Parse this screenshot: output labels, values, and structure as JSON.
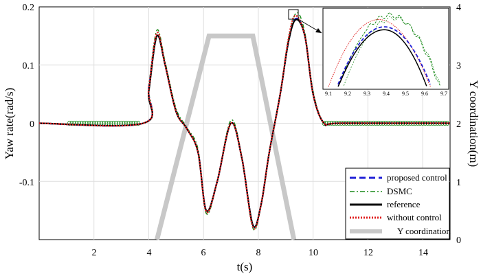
{
  "chart_data": {
    "type": "line",
    "xlabel": "t(s)",
    "ylabel": "Yaw rate(rad/s)",
    "y2label": "Y coordination(m)",
    "xlim": [
      0,
      15
    ],
    "ylim": [
      -0.2,
      0.2
    ],
    "y2lim": [
      0,
      4
    ],
    "xticks": [
      "2",
      "4",
      "6",
      "8",
      "10",
      "12",
      "14"
    ],
    "yticks": [
      "0.2",
      "0.1",
      "0",
      "-0.1"
    ],
    "y2ticks": [
      "4",
      "3",
      "2",
      "1",
      "0"
    ],
    "grid": true,
    "legend_position": "bottom-right",
    "series": [
      {
        "name": "proposed control",
        "color": "#1f1fd6",
        "style": "dashed",
        "x": [
          0,
          3.8,
          4.0,
          4.3,
          4.6,
          5.0,
          5.4,
          5.8,
          6.1,
          6.5,
          7.0,
          7.4,
          7.8,
          8.1,
          8.4,
          8.8,
          9.1,
          9.37,
          9.7,
          10.0,
          10.4,
          11,
          15
        ],
        "y": [
          0,
          0,
          0.06,
          0.15,
          0.1,
          0.02,
          -0.01,
          -0.05,
          -0.15,
          -0.1,
          0,
          -0.06,
          -0.175,
          -0.14,
          -0.05,
          0.05,
          0.14,
          0.18,
          0.15,
          0.05,
          0,
          0,
          0
        ]
      },
      {
        "name": "DSMC",
        "color": "#1a8a1a",
        "style": "dashdot",
        "x": [
          0,
          3.8,
          4.0,
          4.3,
          4.6,
          5.0,
          5.4,
          5.8,
          6.1,
          6.5,
          7.0,
          7.4,
          7.8,
          8.1,
          8.4,
          8.8,
          9.1,
          9.4,
          9.7,
          10.0,
          10.4,
          11,
          15
        ],
        "y": [
          0,
          0,
          0.065,
          0.16,
          0.105,
          0.025,
          -0.008,
          -0.045,
          -0.155,
          -0.1,
          0.005,
          -0.058,
          -0.18,
          -0.142,
          -0.05,
          0.052,
          0.145,
          0.19,
          0.155,
          0.055,
          0,
          0,
          0
        ]
      },
      {
        "name": "reference",
        "color": "#000000",
        "style": "solid",
        "x": [
          0,
          3.8,
          4.0,
          4.3,
          4.6,
          5.0,
          5.4,
          5.8,
          6.1,
          6.5,
          7.0,
          7.4,
          7.8,
          8.1,
          8.4,
          8.8,
          9.1,
          9.37,
          9.7,
          10.0,
          10.4,
          11,
          15
        ],
        "y": [
          0,
          0,
          0.055,
          0.15,
          0.1,
          0.02,
          -0.01,
          -0.05,
          -0.15,
          -0.1,
          0,
          -0.06,
          -0.175,
          -0.14,
          -0.05,
          0.05,
          0.14,
          0.178,
          0.15,
          0.05,
          0,
          0,
          0
        ]
      },
      {
        "name": "without control",
        "color": "#e02020",
        "style": "dotted",
        "x": [
          0,
          3.8,
          4.0,
          4.3,
          4.6,
          5.0,
          5.4,
          5.8,
          6.1,
          6.5,
          7.0,
          7.4,
          7.8,
          8.1,
          8.4,
          8.8,
          9.1,
          9.35,
          9.7,
          10.0,
          10.4,
          11,
          15
        ],
        "y": [
          0,
          0,
          0.06,
          0.155,
          0.1,
          0.02,
          -0.01,
          -0.05,
          -0.152,
          -0.1,
          0,
          -0.06,
          -0.178,
          -0.14,
          -0.05,
          0.05,
          0.145,
          0.185,
          0.15,
          0.05,
          0,
          0,
          0
        ]
      },
      {
        "name": "Y coordination",
        "color": "#c8c8c8",
        "style": "solid",
        "axis": "right",
        "x": [
          4.3,
          6.2,
          7.8,
          9.3
        ],
        "y": [
          0,
          3.5,
          3.5,
          0
        ]
      }
    ],
    "inset": {
      "xlim": [
        9.1,
        9.7
      ],
      "xticks": [
        "9.1",
        "9.2",
        "9.3",
        "9.4",
        "9.5",
        "9.6",
        "9.7"
      ]
    }
  }
}
